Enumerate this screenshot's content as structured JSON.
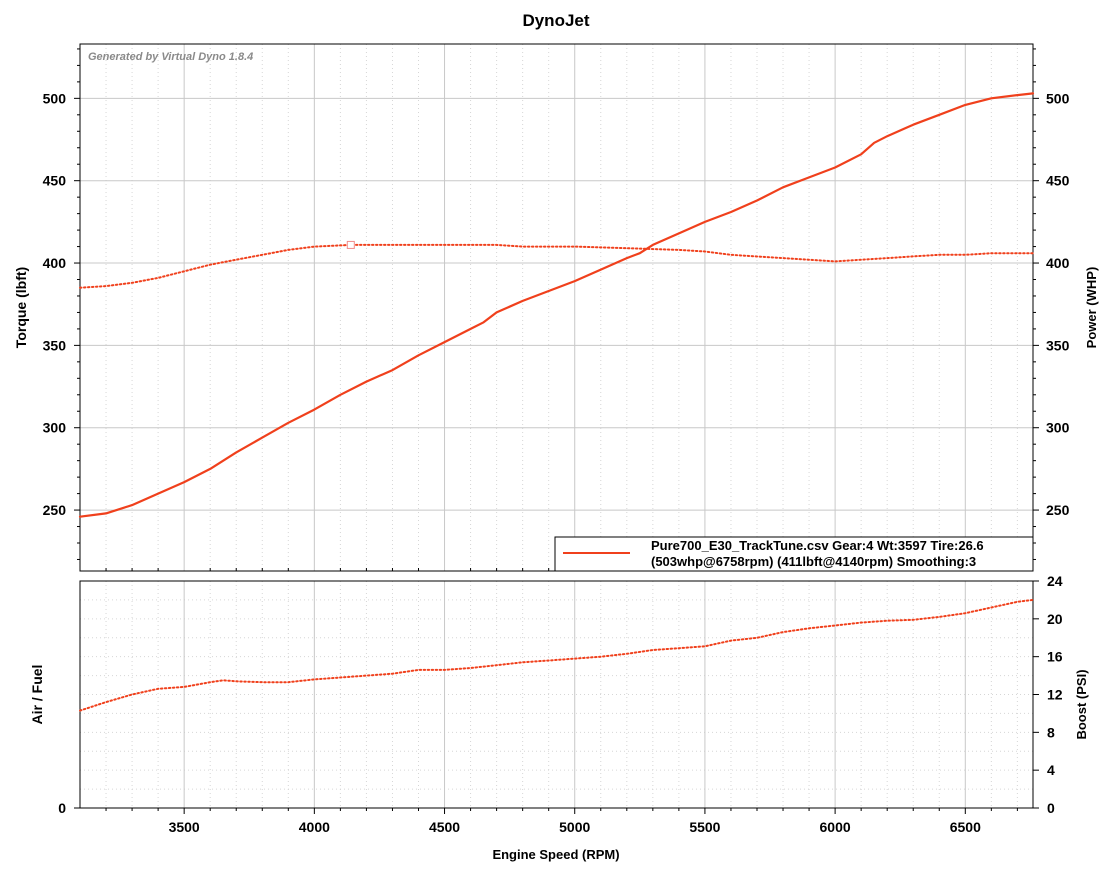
{
  "title": "DynoJet",
  "watermark": "Generated by Virtual Dyno 1.8.4",
  "colors": {
    "series": "#f0401c",
    "grid_major": "#c8c8c8",
    "grid_minor": "#d6d6d6",
    "frame": "#000000"
  },
  "chart_data": [
    {
      "type": "line",
      "panel": "top",
      "xlabel": "Engine Speed (RPM)",
      "ylabel": "Torque (lbft)",
      "y2label": "Power (WHP)",
      "xlim": [
        3100,
        6760
      ],
      "ylim": [
        213,
        533
      ],
      "y2lim": [
        213,
        533
      ],
      "x_ticks": [
        3500,
        4000,
        4500,
        5000,
        5500,
        6000,
        6500
      ],
      "y_ticks": [
        250,
        300,
        350,
        400,
        450,
        500
      ],
      "y2_ticks": [
        250,
        300,
        350,
        400,
        450,
        500
      ],
      "grid": true,
      "series": [
        {
          "style": "solid",
          "axis": "right",
          "x": [
            3100,
            3200,
            3300,
            3400,
            3500,
            3600,
            3700,
            3800,
            3900,
            4000,
            4100,
            4200,
            4300,
            4400,
            4500,
            4600,
            4650,
            4700,
            4800,
            4900,
            5000,
            5100,
            5200,
            5250,
            5300,
            5400,
            5500,
            5600,
            5700,
            5800,
            5900,
            6000,
            6100,
            6150,
            6200,
            6300,
            6400,
            6500,
            6600,
            6700,
            6760
          ],
          "y": [
            246,
            248,
            253,
            260,
            267,
            275,
            285,
            294,
            303,
            311,
            320,
            328,
            335,
            344,
            352,
            360,
            364,
            370,
            377,
            383,
            389,
            396,
            403,
            406,
            411,
            418,
            425,
            431,
            438,
            446,
            452,
            458,
            466,
            473,
            477,
            484,
            490,
            496,
            500,
            502,
            503
          ]
        },
        {
          "style": "dotted",
          "axis": "left",
          "x": [
            3100,
            3200,
            3300,
            3400,
            3500,
            3600,
            3700,
            3800,
            3900,
            4000,
            4140,
            4300,
            4500,
            4700,
            4800,
            5000,
            5200,
            5400,
            5500,
            5600,
            5800,
            6000,
            6100,
            6200,
            6300,
            6400,
            6500,
            6600,
            6760
          ],
          "y": [
            385,
            386,
            388,
            391,
            395,
            399,
            402,
            405,
            408,
            410,
            411,
            411,
            411,
            411,
            410,
            410,
            409,
            408,
            407,
            405,
            403,
            401,
            402,
            403,
            404,
            405,
            405,
            406,
            406
          ]
        }
      ],
      "annotations": [
        {
          "x": 4140,
          "y": 411,
          "marker": "square"
        }
      ],
      "legend": {
        "placement": "bottom-right",
        "line1": "Pure700_E30_TrackTune.csv Gear:4 Wt:3597 Tire:26.6",
        "line2": "(503whp@6758rpm) (411lbft@4140rpm) Smoothing:3"
      }
    },
    {
      "type": "line",
      "panel": "bottom",
      "xlabel": "Engine Speed (RPM)",
      "ylabel": "Air / Fuel",
      "y2label": "Boost (PSI)",
      "xlim": [
        3100,
        6760
      ],
      "y2lim": [
        0,
        24
      ],
      "y_ticks": [
        0
      ],
      "y2_ticks": [
        0,
        4,
        8,
        12,
        16,
        20,
        24
      ],
      "grid": true,
      "series": [
        {
          "style": "dotted",
          "axis": "right",
          "x": [
            3100,
            3200,
            3300,
            3400,
            3500,
            3600,
            3650,
            3700,
            3800,
            3900,
            4000,
            4100,
            4200,
            4300,
            4400,
            4500,
            4600,
            4700,
            4800,
            4900,
            5000,
            5100,
            5200,
            5300,
            5400,
            5500,
            5600,
            5700,
            5800,
            5900,
            6000,
            6100,
            6200,
            6300,
            6400,
            6500,
            6600,
            6700,
            6760
          ],
          "y": [
            10.3,
            11.2,
            12.0,
            12.6,
            12.8,
            13.3,
            13.5,
            13.4,
            13.3,
            13.3,
            13.6,
            13.8,
            14.0,
            14.2,
            14.6,
            14.6,
            14.8,
            15.1,
            15.4,
            15.6,
            15.8,
            16.0,
            16.3,
            16.7,
            16.9,
            17.1,
            17.7,
            18.0,
            18.6,
            19.0,
            19.3,
            19.6,
            19.8,
            19.9,
            20.2,
            20.6,
            21.2,
            21.8,
            22.0
          ]
        }
      ]
    }
  ]
}
